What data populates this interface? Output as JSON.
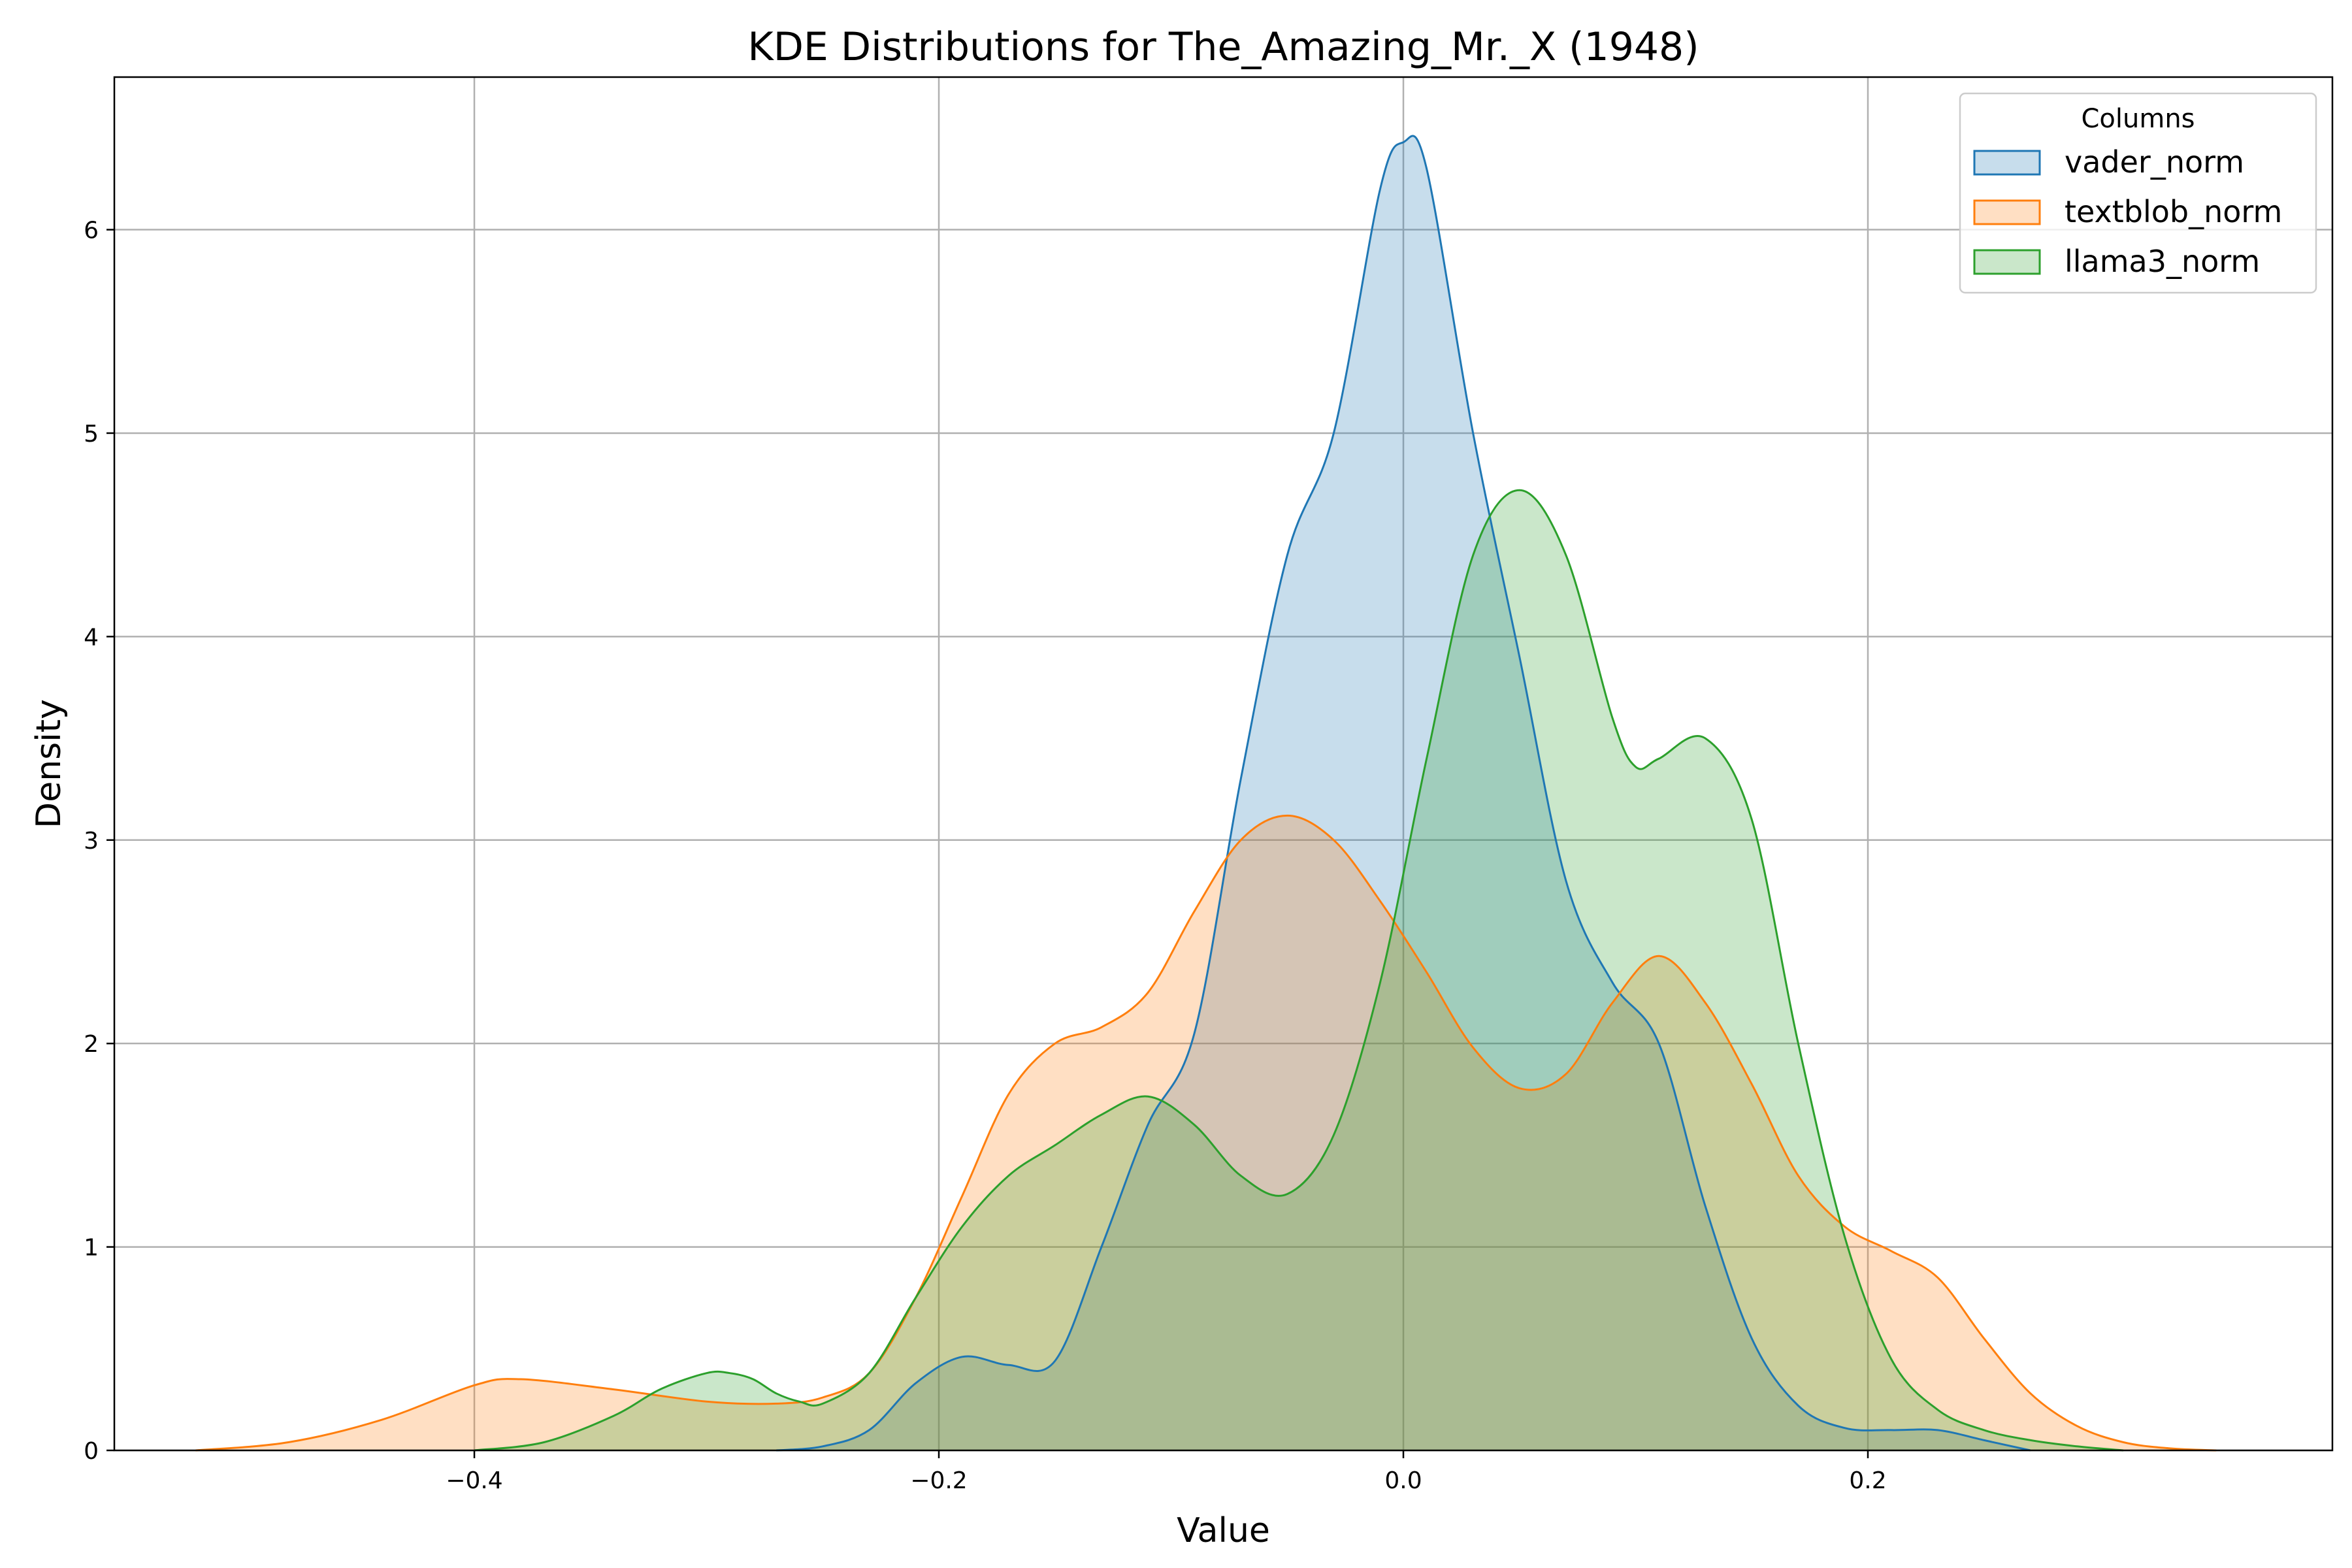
{
  "chart_data": {
    "type": "area",
    "title": "KDE Distributions for The_Amazing_Mr._X (1948)",
    "xlabel": "Value",
    "ylabel": "Density",
    "xlim": [
      -0.555,
      0.4
    ],
    "ylim": [
      0,
      6.75
    ],
    "xticks": [
      -0.4,
      -0.2,
      0.0,
      0.2
    ],
    "xtick_labels": [
      "−0.4",
      "−0.2",
      "0.0",
      "0.2"
    ],
    "yticks": [
      0,
      1,
      2,
      3,
      4,
      5,
      6
    ],
    "ytick_labels": [
      "0",
      "1",
      "2",
      "3",
      "4",
      "5",
      "6"
    ],
    "grid": true,
    "legend": {
      "title": "Columns",
      "placement": "top-right"
    },
    "series": [
      {
        "name": "vader_norm",
        "color": "#1f77b4",
        "x": [
          -0.27,
          -0.25,
          -0.23,
          -0.21,
          -0.19,
          -0.17,
          -0.15,
          -0.13,
          -0.11,
          -0.09,
          -0.07,
          -0.05,
          -0.03,
          -0.01,
          0.0,
          0.01,
          0.03,
          0.05,
          0.07,
          0.09,
          0.11,
          0.13,
          0.15,
          0.17,
          0.19,
          0.21,
          0.23,
          0.25,
          0.27
        ],
        "y": [
          0.0,
          0.02,
          0.1,
          0.33,
          0.46,
          0.42,
          0.44,
          1.0,
          1.6,
          2.05,
          3.3,
          4.4,
          5.0,
          6.2,
          6.43,
          6.3,
          5.0,
          3.9,
          2.8,
          2.3,
          2.0,
          1.2,
          0.55,
          0.22,
          0.11,
          0.1,
          0.1,
          0.05,
          0.0
        ]
      },
      {
        "name": "textblob_norm",
        "color": "#ff7f0e",
        "x": [
          -0.52,
          -0.48,
          -0.44,
          -0.4,
          -0.38,
          -0.34,
          -0.3,
          -0.27,
          -0.25,
          -0.23,
          -0.21,
          -0.19,
          -0.17,
          -0.15,
          -0.13,
          -0.11,
          -0.09,
          -0.07,
          -0.05,
          -0.03,
          -0.01,
          0.01,
          0.03,
          0.05,
          0.07,
          0.09,
          0.11,
          0.13,
          0.15,
          0.17,
          0.19,
          0.21,
          0.23,
          0.25,
          0.27,
          0.29,
          0.31,
          0.33,
          0.35
        ],
        "y": [
          0.0,
          0.04,
          0.15,
          0.32,
          0.35,
          0.3,
          0.24,
          0.23,
          0.26,
          0.38,
          0.75,
          1.25,
          1.75,
          2.0,
          2.08,
          2.25,
          2.65,
          3.0,
          3.12,
          3.0,
          2.7,
          2.35,
          1.98,
          1.78,
          1.85,
          2.2,
          2.43,
          2.2,
          1.8,
          1.35,
          1.1,
          0.98,
          0.85,
          0.55,
          0.28,
          0.12,
          0.04,
          0.01,
          0.0
        ]
      },
      {
        "name": "llama3_norm",
        "color": "#2ca02c",
        "x": [
          -0.4,
          -0.37,
          -0.34,
          -0.32,
          -0.3,
          -0.29,
          -0.28,
          -0.27,
          -0.26,
          -0.25,
          -0.23,
          -0.21,
          -0.19,
          -0.17,
          -0.15,
          -0.13,
          -0.11,
          -0.09,
          -0.07,
          -0.05,
          -0.03,
          -0.01,
          0.01,
          0.03,
          0.05,
          0.07,
          0.09,
          0.1,
          0.11,
          0.13,
          0.15,
          0.17,
          0.19,
          0.21,
          0.23,
          0.25,
          0.27,
          0.29,
          0.31
        ],
        "y": [
          0.0,
          0.04,
          0.17,
          0.3,
          0.38,
          0.38,
          0.35,
          0.28,
          0.24,
          0.23,
          0.38,
          0.75,
          1.1,
          1.35,
          1.5,
          1.65,
          1.74,
          1.6,
          1.35,
          1.26,
          1.55,
          2.3,
          3.4,
          4.4,
          4.72,
          4.4,
          3.6,
          3.36,
          3.4,
          3.5,
          3.1,
          2.0,
          1.05,
          0.45,
          0.2,
          0.1,
          0.05,
          0.02,
          0.0
        ]
      }
    ]
  }
}
